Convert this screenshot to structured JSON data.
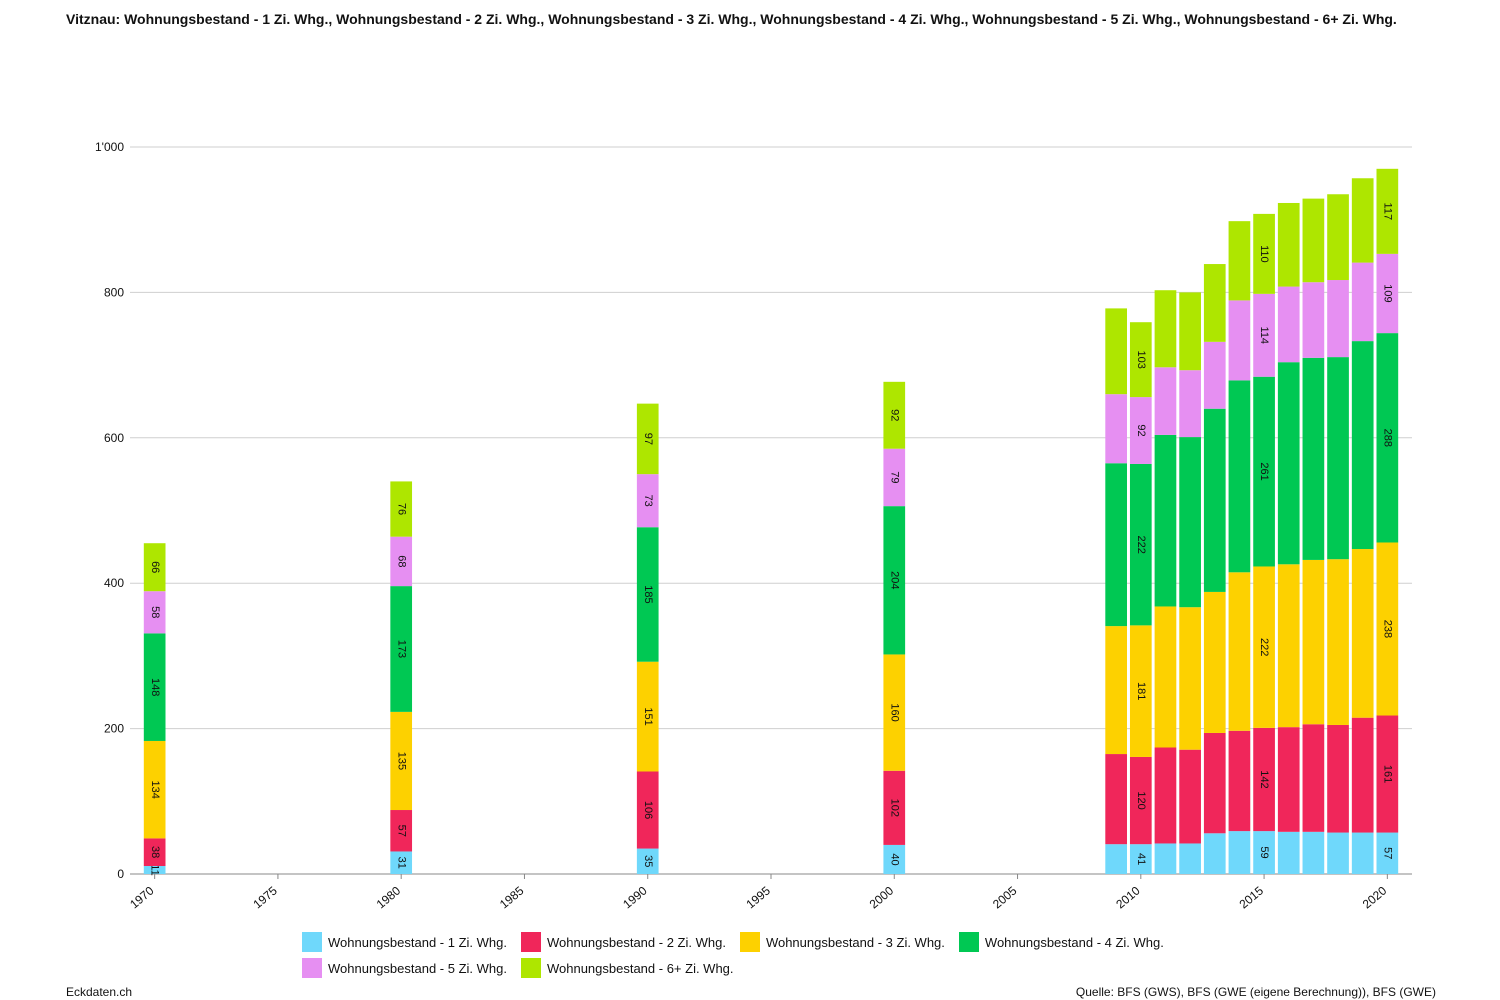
{
  "title": "Vitznau: Wohnungsbestand - 1 Zi. Whg., Wohnungsbestand - 2 Zi. Whg., Wohnungsbestand - 3 Zi. Whg., Wohnungsbestand - 4 Zi. Whg., Wohnungsbestand - 5 Zi. Whg., Wohnungsbestand - 6+ Zi. Whg.",
  "footer": {
    "left": "Eckdaten.ch",
    "right": "Quelle: BFS (GWS), BFS (GWE (eigene Berechnung)), BFS (GWE)"
  },
  "chart_data": {
    "type": "bar",
    "stacked": true,
    "xlim": [
      1969,
      2021
    ],
    "ylim": [
      0,
      1000
    ],
    "x_ticks": [
      1970,
      1975,
      1980,
      1985,
      1990,
      1995,
      2000,
      2005,
      2010,
      2015,
      2020
    ],
    "y_ticks": [
      0,
      200,
      400,
      600,
      800,
      1000
    ],
    "y_tick_labels": [
      "0",
      "200",
      "400",
      "600",
      "800",
      "1'000"
    ],
    "grid": true,
    "legend_position": "bottom",
    "categories": [
      1970,
      1980,
      1990,
      2000,
      2009,
      2010,
      2011,
      2012,
      2013,
      2014,
      2015,
      2016,
      2017,
      2018,
      2019,
      2020
    ],
    "series": [
      {
        "name": "Wohnungsbestand - 1 Zi. Whg.",
        "color": "#6fd8fb",
        "values": [
          11,
          31,
          35,
          40,
          41,
          41,
          42,
          42,
          56,
          59,
          59,
          58,
          58,
          57,
          57,
          57
        ]
      },
      {
        "name": "Wohnungsbestand - 2 Zi. Whg.",
        "color": "#f0265a",
        "values": [
          38,
          57,
          106,
          102,
          124,
          120,
          132,
          129,
          138,
          138,
          142,
          144,
          148,
          148,
          158,
          161
        ]
      },
      {
        "name": "Wohnungsbestand - 3 Zi. Whg.",
        "color": "#fdd100",
        "values": [
          134,
          135,
          151,
          160,
          176,
          181,
          194,
          196,
          194,
          218,
          222,
          224,
          226,
          228,
          232,
          238
        ]
      },
      {
        "name": "Wohnungsbestand - 4 Zi. Whg.",
        "color": "#00c853",
        "values": [
          148,
          173,
          185,
          204,
          224,
          222,
          236,
          234,
          252,
          264,
          261,
          278,
          278,
          278,
          286,
          288
        ]
      },
      {
        "name": "Wohnungsbestand - 5 Zi. Whg.",
        "color": "#e68ff2",
        "values": [
          58,
          68,
          73,
          79,
          95,
          92,
          93,
          92,
          92,
          110,
          114,
          104,
          104,
          106,
          108,
          109
        ]
      },
      {
        "name": "Wohnungsbestand - 6+ Zi. Whg.",
        "color": "#aee600",
        "values": [
          66,
          76,
          97,
          92,
          118,
          103,
          106,
          107,
          107,
          109,
          110,
          115,
          115,
          118,
          116,
          117
        ]
      }
    ],
    "labeled_categories": [
      1970,
      1980,
      1990,
      2000,
      2010,
      2015,
      2020
    ]
  }
}
